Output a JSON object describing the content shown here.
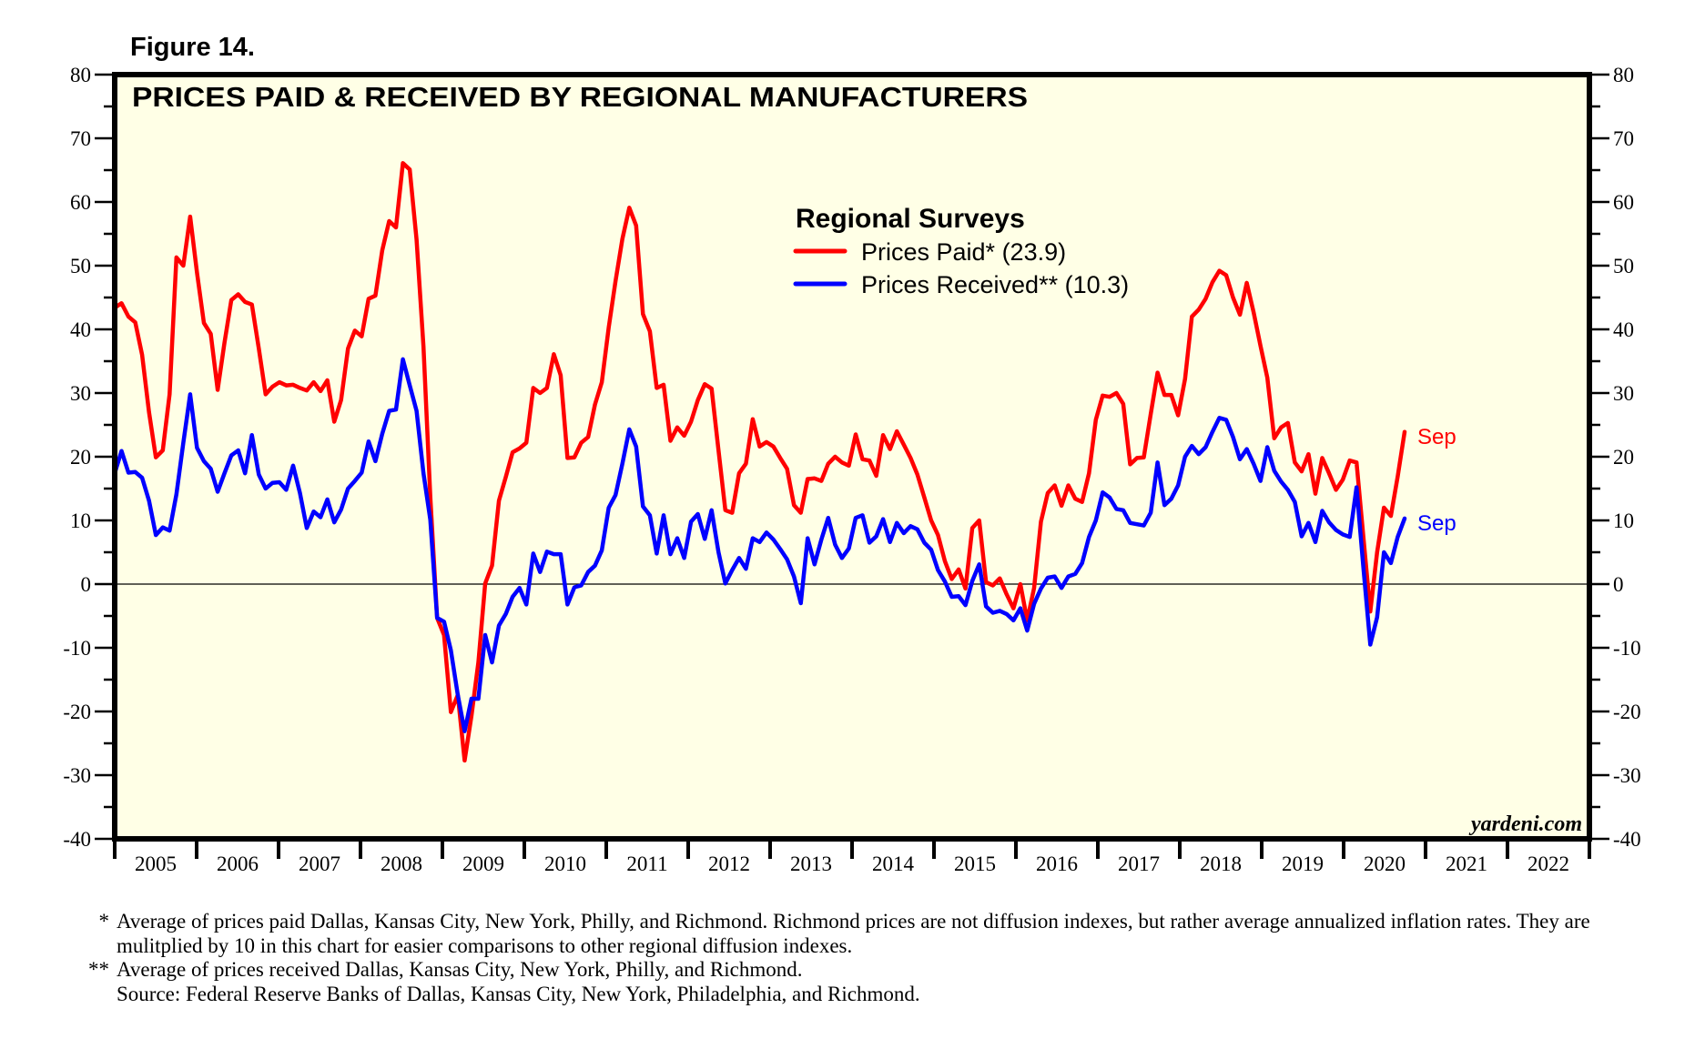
{
  "figure_label": "Figure 14.",
  "credit": "yardeni.com",
  "footnotes": [
    {
      "mark": "*",
      "text": "Average of prices paid Dallas, Kansas City, New York, Philly, and Richmond. Richmond prices are not diffusion indexes, but rather average annualized inflation rates. They are mulitplied by 10 in this chart for easier comparisons to other regional diffusion indexes."
    },
    {
      "mark": "**",
      "text": "Average of prices received Dallas, Kansas City, New York, Philly, and Richmond."
    },
    {
      "mark": "",
      "text": "Source: Federal Reserve Banks of Dallas, Kansas City, New York, Philadelphia, and Richmond."
    }
  ],
  "chart_data": {
    "type": "line",
    "title": "PRICES PAID & RECEIVED BY REGIONAL MANUFACTURERS",
    "legend_title": "Regional Surveys",
    "legend_position": "top-center",
    "xlabel": "",
    "ylabel": "",
    "ylim": [
      -40,
      80
    ],
    "y_ticks": [
      80,
      70,
      60,
      50,
      40,
      30,
      20,
      10,
      0,
      -10,
      -20,
      -30,
      -40
    ],
    "y_axis_both_sides": true,
    "zero_line": true,
    "grid": false,
    "background_color": "#ffffe6",
    "x_start": "2005-01",
    "x_frequency": "monthly",
    "xlim_years": [
      2005,
      2022
    ],
    "x_tick_labels": [
      "2005",
      "2006",
      "2007",
      "2008",
      "2009",
      "2010",
      "2011",
      "2012",
      "2013",
      "2014",
      "2015",
      "2016",
      "2017",
      "2018",
      "2019",
      "2020",
      "2021",
      "2022"
    ],
    "series": [
      {
        "name": "Prices Paid*",
        "legend_label": "Prices Paid* (23.9)",
        "latest_value": 23.9,
        "end_label": "Sep",
        "color": "#ff0000",
        "values": [
          43.4,
          44.1,
          42.0,
          41.1,
          36.0,
          27.0,
          19.9,
          21.0,
          29.8,
          51.3,
          50.0,
          57.7,
          48.9,
          41.0,
          39.3,
          30.5,
          37.9,
          44.6,
          45.5,
          44.3,
          43.9,
          37.0,
          29.8,
          31.0,
          31.7,
          31.2,
          31.3,
          30.8,
          30.4,
          31.7,
          30.3,
          32.0,
          25.5,
          28.9,
          37.0,
          39.8,
          38.9,
          44.8,
          45.3,
          52.4,
          57.0,
          56.0,
          66.1,
          65.1,
          54.1,
          37.3,
          13.7,
          -5.3,
          -8.0,
          -20.1,
          -17.4,
          -27.7,
          -20.7,
          -12.3,
          0.1,
          2.9,
          13.1,
          16.8,
          20.7,
          21.3,
          22.2,
          30.8,
          30.0,
          30.8,
          36.1,
          32.8,
          19.8,
          19.9,
          22.2,
          23.1,
          28.2,
          31.7,
          40.3,
          47.6,
          54.2,
          59.1,
          56.3,
          42.4,
          39.7,
          30.8,
          31.3,
          22.5,
          24.6,
          23.3,
          25.5,
          28.9,
          31.4,
          30.7,
          21.0,
          11.6,
          11.2,
          17.4,
          18.9,
          25.9,
          21.6,
          22.3,
          21.6,
          19.8,
          18.1,
          12.4,
          11.2,
          16.5,
          16.6,
          16.2,
          18.9,
          20.0,
          19.1,
          18.6,
          23.5,
          19.6,
          19.4,
          17.0,
          23.4,
          21.2,
          24.0,
          21.9,
          19.8,
          17.2,
          13.6,
          10.0,
          7.7,
          3.6,
          0.8,
          2.3,
          -0.7,
          8.8,
          10.0,
          0.3,
          -0.2,
          0.9,
          -1.6,
          -3.8,
          0.0,
          -5.7,
          -0.6,
          9.8,
          14.3,
          15.5,
          12.3,
          15.5,
          13.4,
          12.9,
          17.4,
          25.8,
          29.6,
          29.4,
          30.0,
          28.3,
          18.8,
          19.8,
          19.9,
          26.7,
          33.2,
          29.7,
          29.7,
          26.5,
          32.2,
          42.0,
          43.1,
          44.8,
          47.4,
          49.2,
          48.5,
          45.0,
          42.3,
          47.3,
          42.7,
          37.4,
          32.4,
          22.9,
          24.6,
          25.3,
          19.1,
          17.7,
          20.4,
          14.2,
          19.8,
          17.4,
          14.8,
          16.4,
          19.4,
          19.1,
          7.4,
          -4.3,
          5.0,
          12.0,
          10.7,
          16.9,
          23.9
        ]
      },
      {
        "name": "Prices Received**",
        "legend_label": "Prices Received** (10.3)",
        "latest_value": 10.3,
        "end_label": "Sep",
        "color": "#0000ff",
        "values": [
          17.4,
          20.9,
          17.5,
          17.6,
          16.7,
          13.1,
          7.7,
          8.9,
          8.4,
          14.1,
          22.2,
          29.8,
          21.4,
          19.3,
          18.1,
          14.5,
          17.4,
          20.2,
          21.0,
          17.4,
          23.4,
          17.2,
          15.0,
          15.9,
          16.0,
          14.8,
          18.6,
          14.3,
          8.8,
          11.4,
          10.5,
          13.3,
          9.7,
          11.7,
          15.0,
          16.2,
          17.5,
          22.4,
          19.3,
          23.6,
          27.2,
          27.4,
          35.3,
          31.2,
          27.2,
          17.4,
          10.1,
          -5.3,
          -5.9,
          -10.4,
          -17.4,
          -23.1,
          -18.0,
          -18.0,
          -8.0,
          -12.3,
          -6.5,
          -4.7,
          -2.0,
          -0.6,
          -3.2,
          4.8,
          1.9,
          5.1,
          4.7,
          4.7,
          -3.2,
          -0.5,
          -0.2,
          1.9,
          2.9,
          5.3,
          12.0,
          14.0,
          18.9,
          24.3,
          21.6,
          12.2,
          10.8,
          4.8,
          10.8,
          4.7,
          7.2,
          4.1,
          9.8,
          11.0,
          7.1,
          11.6,
          5.0,
          0.1,
          2.2,
          4.1,
          2.4,
          7.2,
          6.6,
          8.1,
          7.0,
          5.5,
          3.9,
          1.2,
          -3.0,
          7.2,
          3.1,
          7.0,
          10.4,
          6.2,
          4.1,
          5.6,
          10.4,
          10.8,
          6.5,
          7.5,
          10.2,
          6.6,
          9.6,
          8.0,
          9.1,
          8.6,
          6.5,
          5.4,
          2.2,
          0.4,
          -2.0,
          -1.9,
          -3.3,
          0.5,
          3.1,
          -3.5,
          -4.5,
          -4.2,
          -4.7,
          -5.7,
          -3.8,
          -7.3,
          -3.1,
          -0.7,
          1.0,
          1.2,
          -0.6,
          1.2,
          1.6,
          3.3,
          7.4,
          10.0,
          14.4,
          13.6,
          11.8,
          11.6,
          9.6,
          9.4,
          9.2,
          11.2,
          19.1,
          12.4,
          13.4,
          15.5,
          20.0,
          21.7,
          20.4,
          21.5,
          23.9,
          26.1,
          25.8,
          23.1,
          19.6,
          21.2,
          18.9,
          16.2,
          21.5,
          17.8,
          16.1,
          14.8,
          12.9,
          7.5,
          9.6,
          6.6,
          11.5,
          9.7,
          8.5,
          7.8,
          7.4,
          15.2,
          2.6,
          -9.5,
          -5.2,
          5.0,
          3.3,
          7.4,
          10.3
        ]
      }
    ]
  }
}
